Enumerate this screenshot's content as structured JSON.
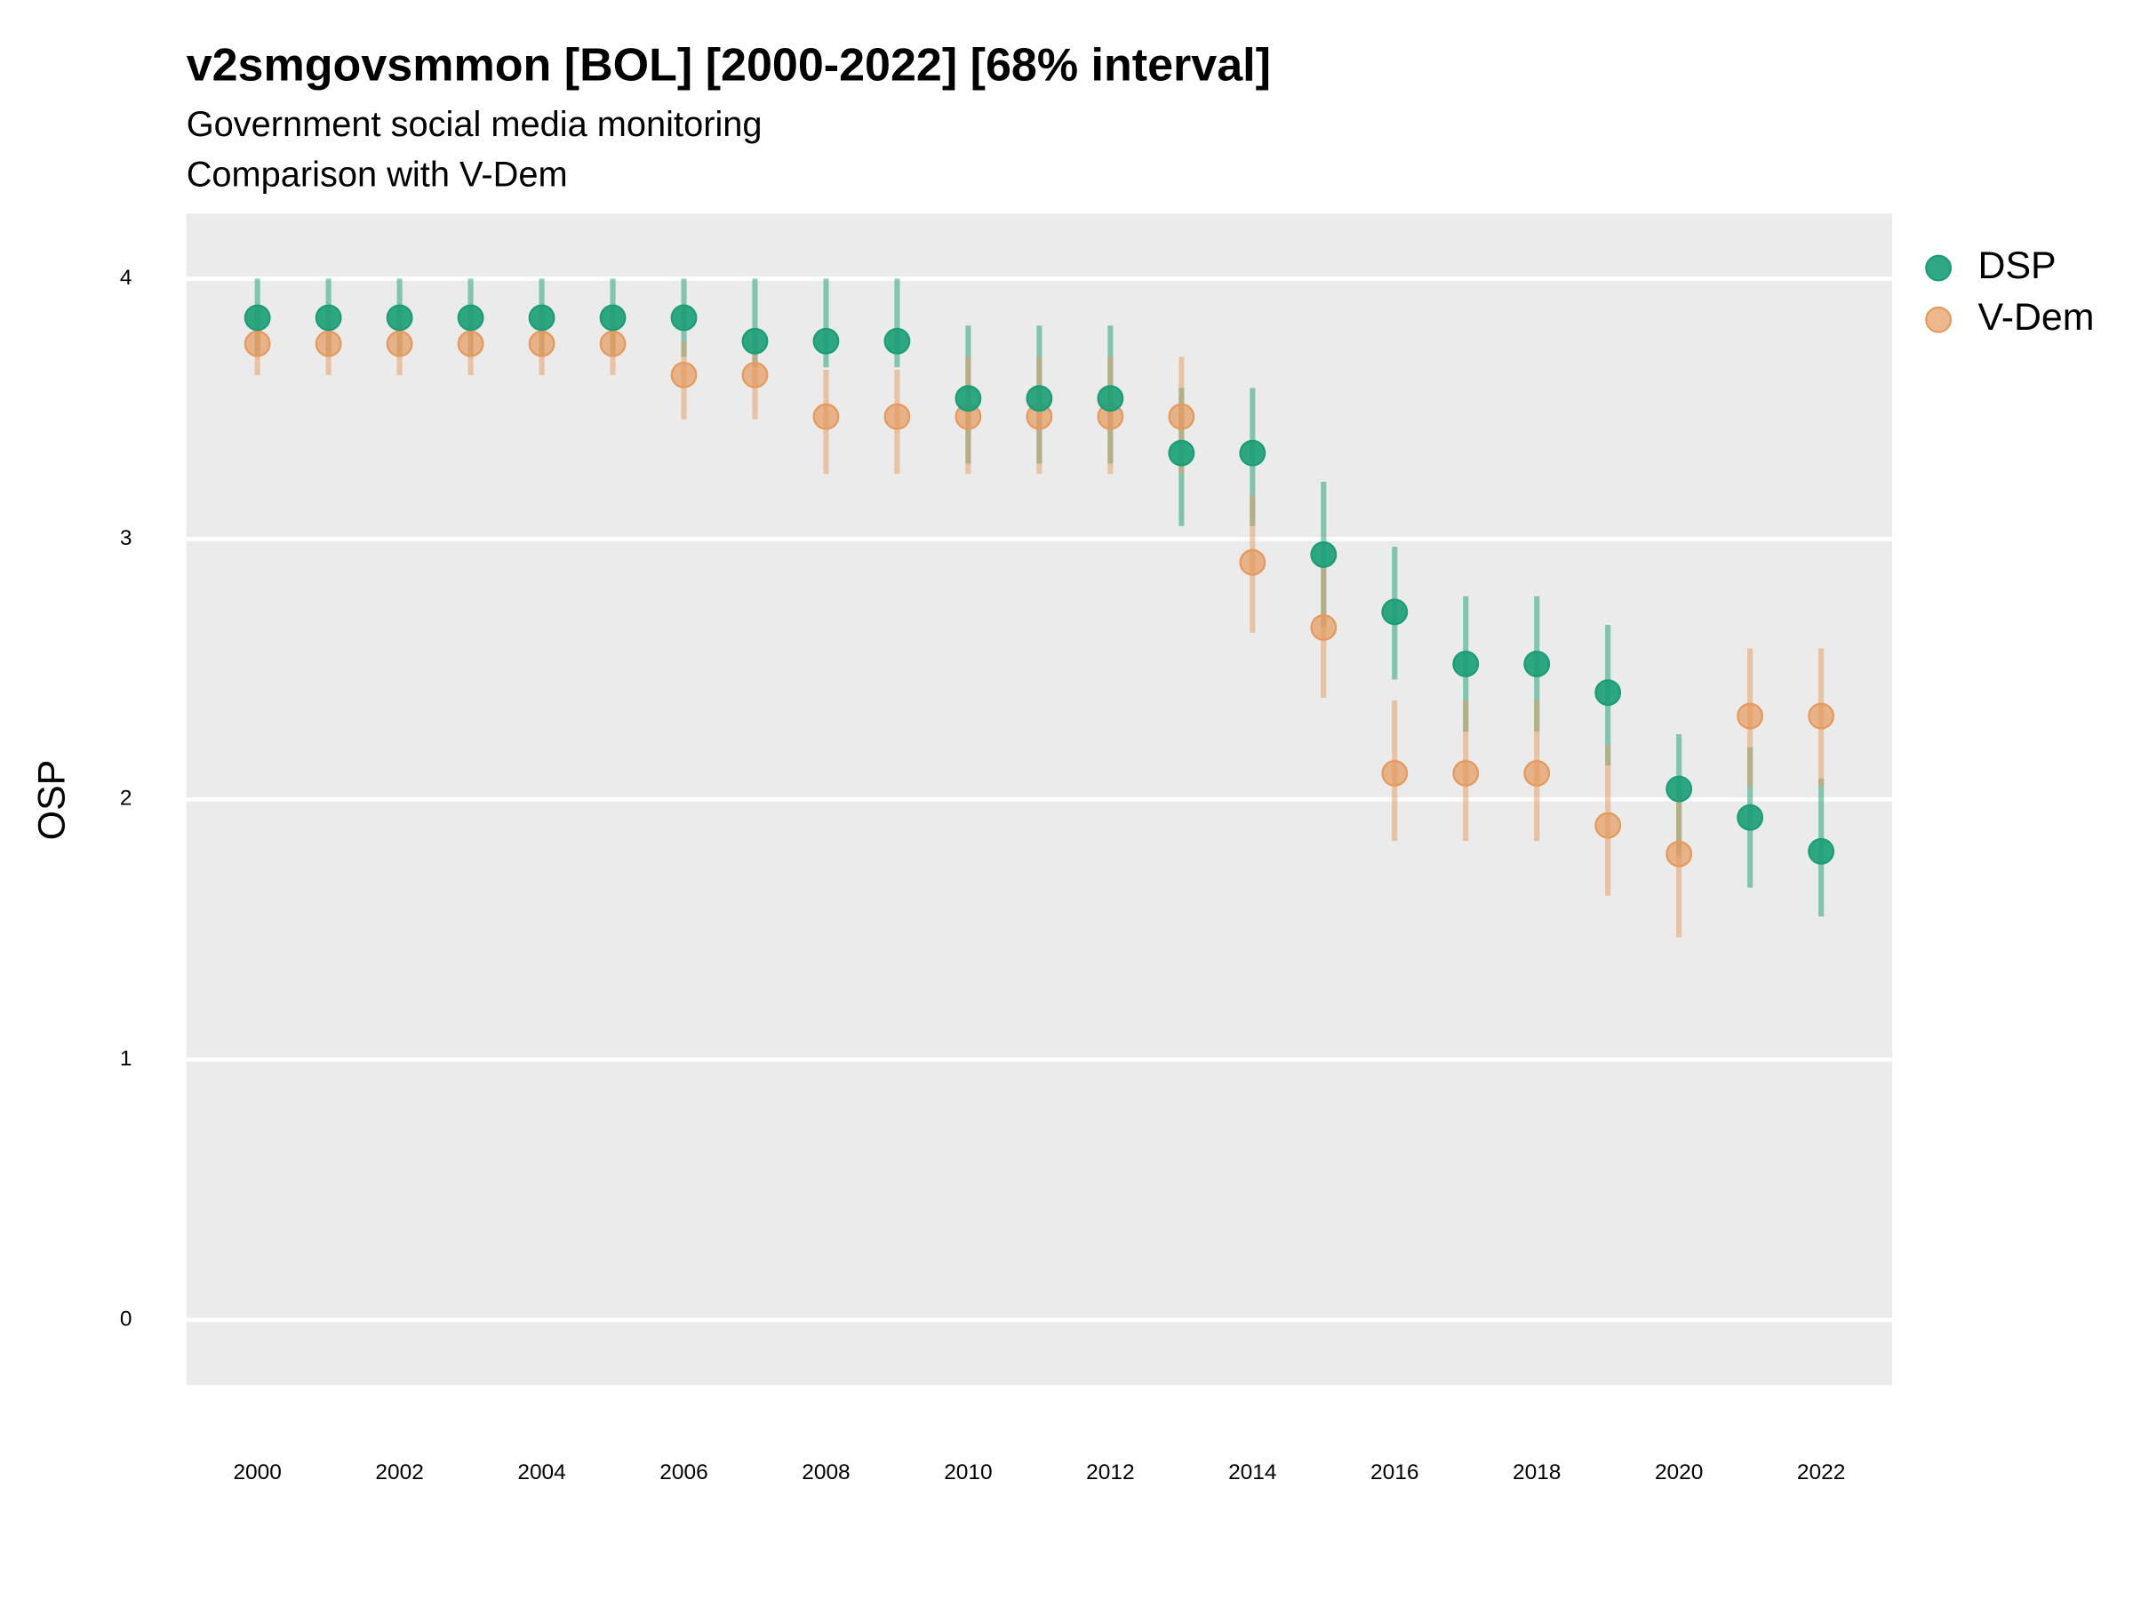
{
  "chart_data": {
    "type": "pointrange",
    "title": "v2smgovsmmon [BOL] [2000-2022] [68% interval]",
    "subtitle": "Government social media monitoring",
    "caption": "Comparison with V-Dem",
    "y_label": "OSP",
    "x": [
      2000,
      2001,
      2002,
      2003,
      2004,
      2005,
      2006,
      2007,
      2008,
      2009,
      2010,
      2011,
      2012,
      2013,
      2014,
      2015,
      2016,
      2017,
      2018,
      2019,
      2020,
      2021,
      2022
    ],
    "xlim": [
      1999,
      2023
    ],
    "xticks": [
      2000,
      2002,
      2004,
      2006,
      2008,
      2010,
      2012,
      2014,
      2016,
      2018,
      2020,
      2022
    ],
    "ylim": [
      -0.25,
      4.25
    ],
    "yticks": [
      0,
      1,
      2,
      3,
      4
    ],
    "grid": true,
    "legend": "right",
    "series": [
      {
        "name": "DSP",
        "color": "#1b9e77",
        "values": [
          3.85,
          3.85,
          3.85,
          3.85,
          3.85,
          3.85,
          3.85,
          3.76,
          3.76,
          3.76,
          3.54,
          3.54,
          3.54,
          3.33,
          3.33,
          2.94,
          2.72,
          2.52,
          2.52,
          2.41,
          2.04,
          1.93,
          1.8
        ],
        "lower": [
          3.7,
          3.7,
          3.7,
          3.7,
          3.7,
          3.7,
          3.7,
          3.66,
          3.66,
          3.66,
          3.29,
          3.29,
          3.29,
          3.05,
          3.05,
          2.66,
          2.46,
          2.26,
          2.26,
          2.13,
          1.78,
          1.66,
          1.55
        ],
        "upper": [
          4.0,
          4.0,
          4.0,
          4.0,
          4.0,
          4.0,
          4.0,
          4.0,
          4.0,
          4.0,
          3.82,
          3.82,
          3.82,
          3.58,
          3.58,
          3.22,
          2.97,
          2.78,
          2.78,
          2.67,
          2.25,
          2.2,
          2.08
        ]
      },
      {
        "name": "V-Dem",
        "color": "#e59a5e",
        "values": [
          3.75,
          3.75,
          3.75,
          3.75,
          3.75,
          3.75,
          3.63,
          3.63,
          3.47,
          3.47,
          3.47,
          3.47,
          3.47,
          3.47,
          2.91,
          2.66,
          2.1,
          2.1,
          2.1,
          1.9,
          1.79,
          2.32,
          2.32
        ],
        "lower": [
          3.63,
          3.63,
          3.63,
          3.63,
          3.63,
          3.63,
          3.46,
          3.46,
          3.25,
          3.25,
          3.25,
          3.25,
          3.25,
          3.25,
          2.64,
          2.39,
          1.84,
          1.84,
          1.84,
          1.63,
          1.47,
          2.05,
          2.05
        ],
        "upper": [
          3.87,
          3.87,
          3.87,
          3.87,
          3.87,
          3.87,
          3.76,
          3.76,
          3.65,
          3.65,
          3.7,
          3.7,
          3.7,
          3.7,
          3.17,
          2.92,
          2.38,
          2.38,
          2.38,
          2.21,
          2.04,
          2.58,
          2.58
        ]
      }
    ]
  }
}
